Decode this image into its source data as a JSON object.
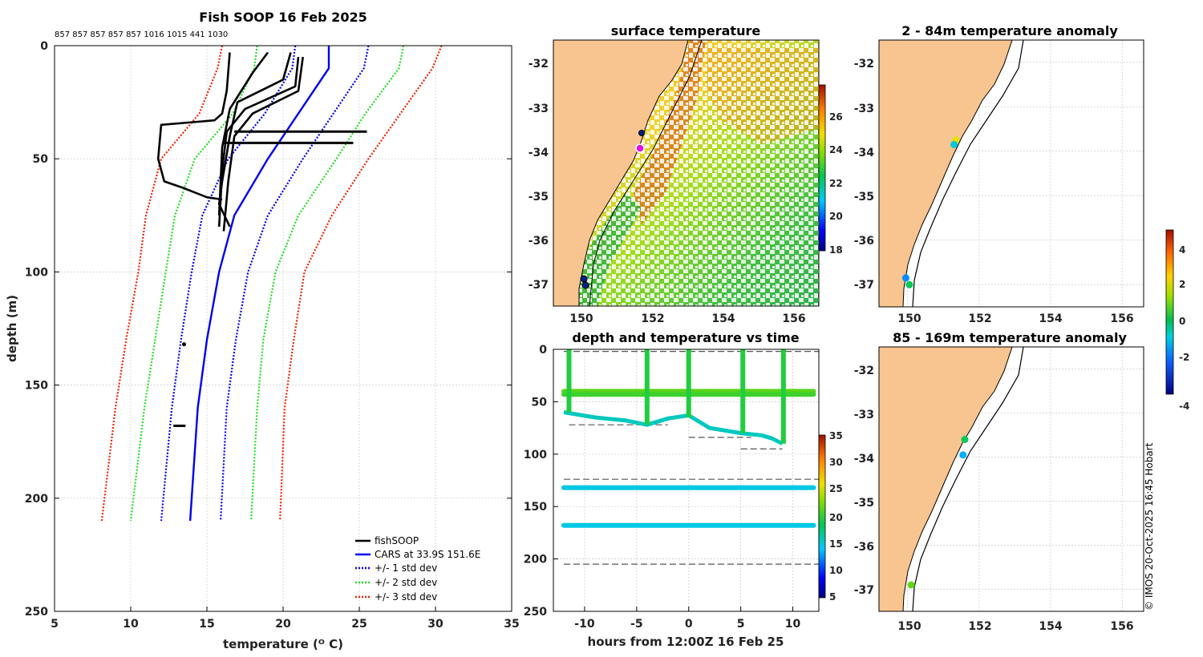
{
  "profile": {
    "title": "Fish SOOP 16 Feb 2025",
    "drop_ids": "857 857 857 857 857 1016 1015 441 1030",
    "xlabel": "temperature (ᴼ C)",
    "ylabel": "depth (m)",
    "legend": [
      "fishSOOP",
      "CARS at 33.9S 151.6E",
      "+/- 1 std dev",
      "+/- 2 std dev",
      "+/- 3 std dev"
    ]
  },
  "sst_panel": {
    "title": "surface temperature",
    "colorbar_ticks": [
      "18",
      "20",
      "22",
      "24",
      "26"
    ]
  },
  "time_panel": {
    "title": "depth and temperature vs time",
    "xlabel": "hours from 12:00Z 16 Feb 25",
    "colorbar_ticks": [
      "5",
      "10",
      "15",
      "20",
      "25",
      "30",
      "35"
    ]
  },
  "anom1": {
    "title": "2 - 84m temperature anomaly"
  },
  "anom2": {
    "title": "85 - 169m temperature anomaly"
  },
  "anom_colorbar_ticks": [
    "-4",
    "-2",
    "0",
    "2",
    "4"
  ],
  "map_lat_ticks": [
    "-32",
    "-33",
    "-34",
    "-35",
    "-36",
    "-37"
  ],
  "map_lon_ticks": [
    "150",
    "152",
    "154",
    "156"
  ],
  "credit": "© IMOS 20-Oct-2025 16:45 Hobart",
  "chart_data": [
    {
      "type": "line",
      "title": "Fish SOOP 16 Feb 2025",
      "xlabel": "temperature (ᴼ C)",
      "ylabel": "depth (m)",
      "xlim": [
        5,
        35
      ],
      "ylim": [
        250,
        0
      ],
      "xticks": [
        5,
        10,
        15,
        20,
        25,
        30,
        35
      ],
      "yticks": [
        0,
        50,
        100,
        150,
        200,
        250
      ],
      "depths": [
        0,
        10,
        30,
        50,
        75,
        100,
        130,
        160,
        210
      ],
      "series": [
        {
          "name": "CARS at 33.9S 151.6E",
          "values": [
            23.0,
            23.0,
            21.0,
            19.0,
            16.8,
            15.8,
            15.0,
            14.4,
            13.9
          ]
        },
        {
          "name": "+/- 1 std dev (lower)",
          "values": [
            20.8,
            20.6,
            18.8,
            16.4,
            14.7,
            14.0,
            13.3,
            12.7,
            12.0
          ]
        },
        {
          "name": "+/- 1 std dev (upper)",
          "values": [
            25.6,
            25.3,
            23.3,
            21.3,
            19.0,
            17.7,
            16.9,
            16.3,
            15.9
          ]
        },
        {
          "name": "+/- 2 std dev (lower)",
          "values": [
            18.3,
            18.1,
            16.7,
            14.2,
            12.9,
            12.3,
            11.6,
            10.9,
            10.0
          ]
        },
        {
          "name": "+/- 2 std dev (upper)",
          "values": [
            27.9,
            27.6,
            25.4,
            23.5,
            21.0,
            19.5,
            18.7,
            18.3,
            17.9
          ]
        },
        {
          "name": "+/- 3 std dev (lower)",
          "values": [
            16.0,
            15.7,
            14.5,
            12.0,
            11.0,
            10.5,
            9.7,
            9.0,
            8.1
          ]
        },
        {
          "name": "+/- 3 std dev (upper)",
          "values": [
            30.4,
            29.8,
            27.7,
            25.6,
            23.2,
            21.4,
            20.7,
            20.1,
            19.8
          ]
        }
      ],
      "fishSOOP_profiles": [
        {
          "t": [
            21.3,
            21.0,
            18.0,
            16.8,
            16.4,
            16.2,
            16.1
          ],
          "d": [
            5,
            20,
            30,
            40,
            60,
            75,
            82
          ]
        },
        {
          "t": [
            21.0,
            20.8,
            17.5,
            16.3,
            16.0,
            15.9,
            15.8
          ],
          "d": [
            5,
            18,
            28,
            38,
            55,
            68,
            80
          ]
        },
        {
          "t": [
            20.5,
            20.0,
            17.0,
            16.5,
            16.0,
            15.8,
            16.5
          ],
          "d": [
            3,
            15,
            25,
            40,
            60,
            70,
            80
          ]
        },
        {
          "t": [
            19.0,
            18.0,
            16.5,
            16.0,
            15.9,
            15.8
          ],
          "d": [
            3,
            12,
            28,
            45,
            60,
            75
          ]
        },
        {
          "t": [
            16.5,
            16.3,
            16.0,
            15.5,
            12.0,
            11.8,
            12.2,
            13.5,
            15.0,
            16.0
          ],
          "d": [
            3,
            20,
            30,
            33,
            35,
            50,
            60,
            63,
            67,
            68
          ]
        }
      ]
    },
    {
      "type": "scatter",
      "title": "depth and temperature vs time",
      "xlabel": "hours from 12:00Z 16 Feb 25",
      "xlim": [
        -13,
        12.5
      ],
      "ylim": [
        250,
        0
      ],
      "xticks": [
        -10,
        -5,
        0,
        5,
        10
      ],
      "yticks": [
        0,
        50,
        100,
        150,
        200,
        250
      ],
      "colorbar": {
        "min": 4,
        "max": 35,
        "ticks": [
          5,
          10,
          15,
          20,
          25,
          30,
          35
        ]
      },
      "tracks": [
        {
          "name": "near-bottom",
          "depth": [
            60,
            65,
            68,
            72,
            66,
            63,
            75,
            80,
            82,
            85,
            90
          ],
          "hours": [
            -12,
            -9,
            -6,
            -4,
            -2,
            0,
            2,
            5,
            7,
            8,
            9
          ],
          "temp": 15
        },
        {
          "name": "40 m line",
          "depth": 40,
          "from": -12,
          "to": 12.5,
          "temp": 21
        },
        {
          "name": "43 m line",
          "depth": 43,
          "from": -12,
          "to": 12.5,
          "temp": 20
        },
        {
          "name": "132 m line",
          "depth": 132,
          "from": -12,
          "to": 12.5,
          "temp": 14
        },
        {
          "name": "168 m line",
          "depth": 168,
          "from": -12,
          "to": 12.5,
          "temp": 14
        }
      ],
      "casts_hours": [
        -11.5,
        -4,
        0,
        5.2,
        9.1
      ],
      "reference_depths": [
        2,
        72,
        84,
        95,
        124,
        205
      ]
    },
    {
      "type": "scatter",
      "title": "2 - 84m temperature anomaly",
      "xlim": [
        149.2,
        156.6
      ],
      "ylim": [
        -37.5,
        -31.5
      ],
      "colorbar": {
        "min": -4,
        "max": 5,
        "ticks": [
          -4,
          -2,
          0,
          2,
          4
        ]
      },
      "points": [
        {
          "lon": 151.35,
          "lat": -33.75,
          "anomaly": 2.2
        },
        {
          "lon": 151.3,
          "lat": -33.85,
          "anomaly": -1.0
        },
        {
          "lon": 149.95,
          "lat": -36.85,
          "anomaly": -1.8
        },
        {
          "lon": 150.05,
          "lat": -37.0,
          "anomaly": 0.0
        }
      ]
    },
    {
      "type": "scatter",
      "title": "85 - 169m temperature anomaly",
      "xlim": [
        149.2,
        156.6
      ],
      "ylim": [
        -37.5,
        -31.5
      ],
      "colorbar": {
        "min": -4,
        "max": 5,
        "ticks": [
          -4,
          -2,
          0,
          2,
          4
        ]
      },
      "points": [
        {
          "lon": 151.6,
          "lat": -33.6,
          "anomaly": 0.0
        },
        {
          "lon": 151.55,
          "lat": -33.95,
          "anomaly": -1.5
        },
        {
          "lon": 150.1,
          "lat": -36.9,
          "anomaly": 1.0
        }
      ]
    }
  ]
}
